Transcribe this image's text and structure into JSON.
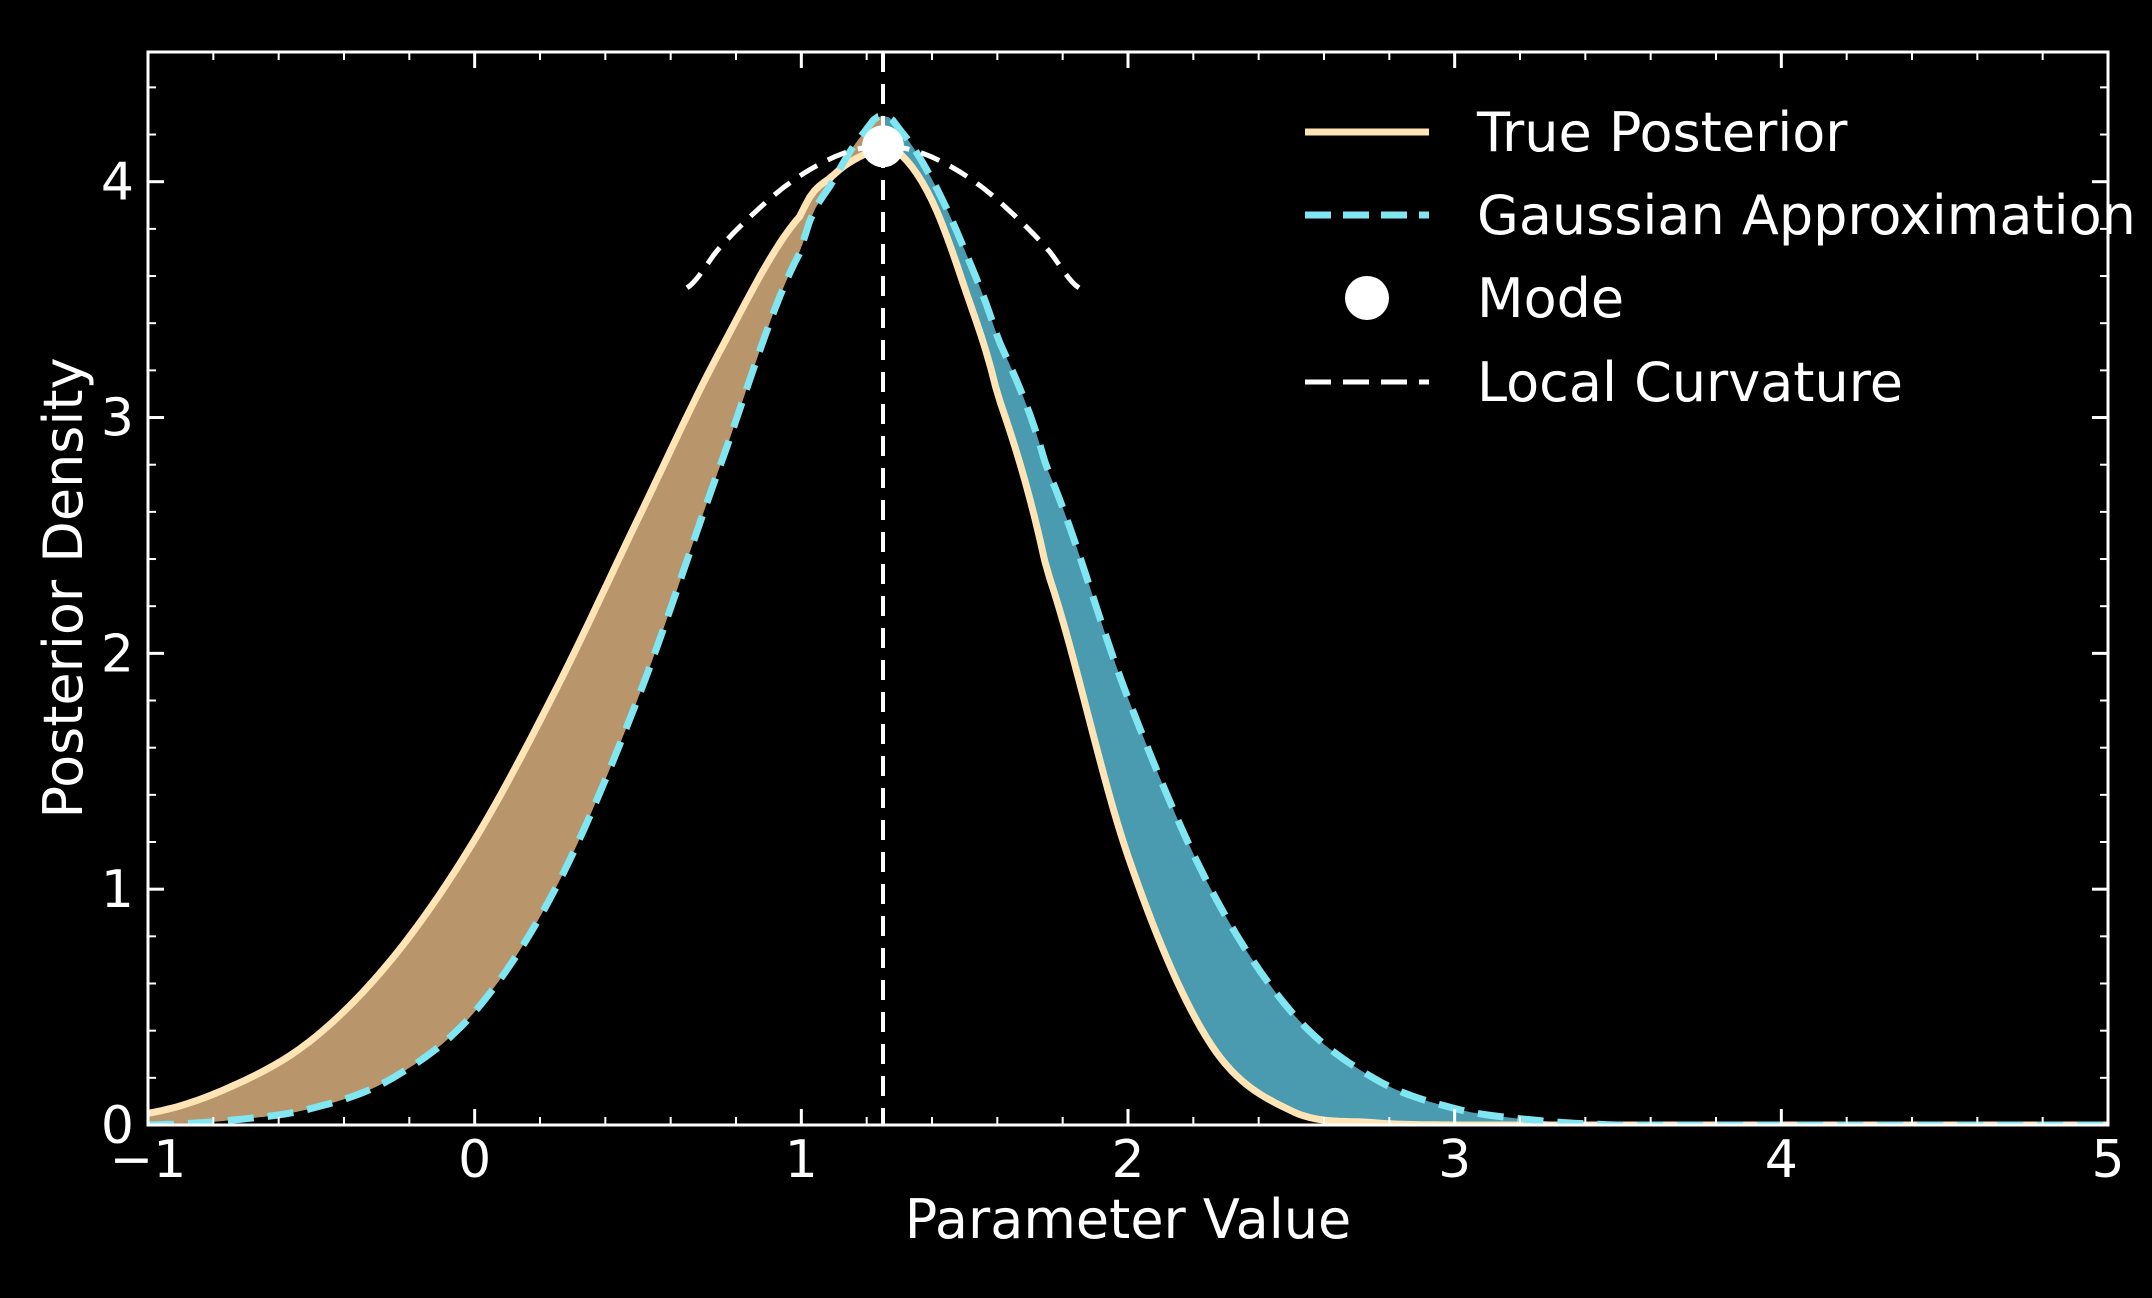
{
  "chart_data": {
    "type": "line",
    "title": "",
    "xlabel": "Parameter Value",
    "ylabel": "Posterior Density",
    "xlim": [
      -1,
      5
    ],
    "ylim": [
      0,
      4.55
    ],
    "xticks": [
      -1,
      0,
      1,
      2,
      3,
      4,
      5
    ],
    "xtick_labels": [
      "−1",
      "0",
      "1",
      "2",
      "3",
      "4",
      "5"
    ],
    "yticks": [
      0,
      1,
      2,
      3,
      4
    ],
    "ytick_labels": [
      "0",
      "1",
      "2",
      "3",
      "4"
    ],
    "grid": false,
    "legend_position": "top-right",
    "series": [
      {
        "name": "True Posterior",
        "style": "solid",
        "color": "#ffe4b5",
        "x": [
          -1.0,
          -0.75,
          -0.5,
          -0.25,
          0.0,
          0.25,
          0.5,
          0.75,
          1.0,
          1.1,
          1.2,
          1.25,
          1.3,
          1.4,
          1.5,
          1.6,
          1.75,
          2.0,
          2.25,
          2.5,
          2.75,
          3.0,
          3.5,
          4.0,
          5.0
        ],
        "y": [
          0.05,
          0.16,
          0.36,
          0.71,
          1.21,
          1.85,
          2.57,
          3.28,
          3.86,
          4.03,
          4.12,
          4.15,
          4.12,
          3.92,
          3.55,
          3.1,
          2.36,
          1.14,
          0.35,
          0.06,
          0.01,
          0.0,
          0.0,
          0.0,
          0.0
        ]
      },
      {
        "name": "Gaussian Approximation",
        "style": "dashed",
        "color": "#7fe6f2",
        "x": [
          -1.0,
          -0.75,
          -0.5,
          -0.25,
          0.0,
          0.25,
          0.5,
          0.75,
          1.0,
          1.1,
          1.2,
          1.25,
          1.3,
          1.4,
          1.5,
          1.6,
          1.75,
          2.0,
          2.25,
          2.5,
          2.75,
          3.0,
          3.25,
          3.5,
          4.0,
          5.0
        ],
        "y": [
          0.0,
          0.02,
          0.07,
          0.2,
          0.48,
          1.01,
          1.81,
          2.79,
          3.71,
          4.01,
          4.22,
          4.28,
          4.22,
          4.01,
          3.71,
          3.34,
          2.79,
          1.81,
          1.01,
          0.48,
          0.2,
          0.07,
          0.02,
          0.0,
          0.0,
          0.0
        ]
      },
      {
        "name": "Mode",
        "style": "marker",
        "color": "#ffffff",
        "x": [
          1.25
        ],
        "y": [
          4.15
        ]
      },
      {
        "name": "Local Curvature",
        "style": "dashed",
        "color": "#ffffff",
        "x": [
          0.65,
          0.75,
          0.85,
          0.95,
          1.05,
          1.15,
          1.25,
          1.35,
          1.45,
          1.55,
          1.65,
          1.75,
          1.85
        ],
        "y": [
          3.55,
          3.72,
          3.86,
          3.98,
          4.07,
          4.13,
          4.15,
          4.13,
          4.07,
          3.98,
          3.86,
          3.72,
          3.55
        ]
      }
    ],
    "vline": {
      "x": 1.25,
      "style": "dashed",
      "color": "#ffffff"
    },
    "fill_between": [
      {
        "between": [
          "True Posterior",
          "Gaussian Approximation"
        ],
        "x_range": [
          -1,
          1.25
        ],
        "color": "#b8956a"
      },
      {
        "between": [
          "True Posterior",
          "Gaussian Approximation"
        ],
        "x_range": [
          1.25,
          3.5
        ],
        "color": "#4a9ab0"
      }
    ]
  }
}
